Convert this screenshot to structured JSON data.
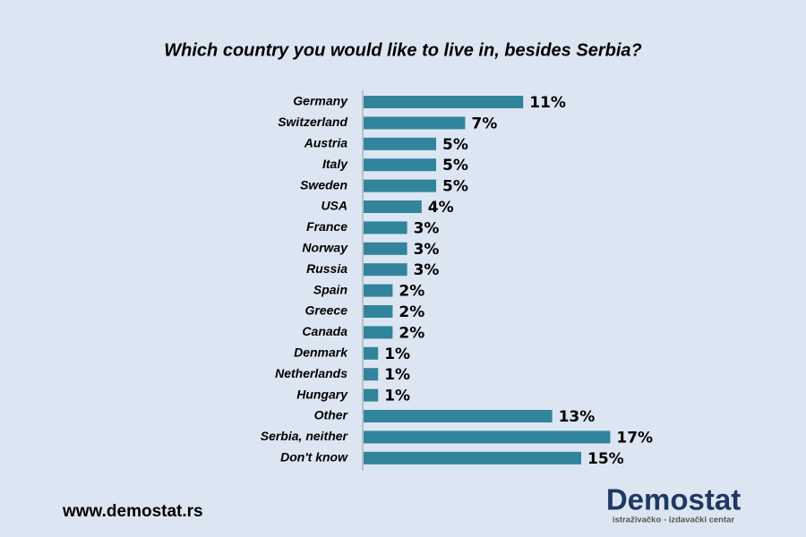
{
  "chart_data": {
    "type": "bar",
    "orientation": "horizontal",
    "title": "Which country you would like to live in, besides Serbia?",
    "categories": [
      "Germany",
      "Switzerland",
      "Austria",
      "Italy",
      "Sweden",
      "USA",
      "France",
      "Norway",
      "Russia",
      "Spain",
      "Greece",
      "Canada",
      "Denmark",
      "Netherlands",
      "Hungary",
      "Other",
      "Serbia, neither",
      "Don't know"
    ],
    "values": [
      11,
      7,
      5,
      5,
      5,
      4,
      3,
      3,
      3,
      2,
      2,
      2,
      1,
      1,
      1,
      13,
      17,
      15
    ],
    "value_labels": [
      "11%",
      "7%",
      "5%",
      "5%",
      "5%",
      "4%",
      "3%",
      "3%",
      "3%",
      "2%",
      "2%",
      "2%",
      "1%",
      "1%",
      "1%",
      "13%",
      "17%",
      "15%"
    ],
    "color": "#31849b"
  },
  "footer": {
    "website": "www.demostat.rs",
    "logo": "Demostat",
    "tagline": "istraživačko - izdavački centar"
  }
}
